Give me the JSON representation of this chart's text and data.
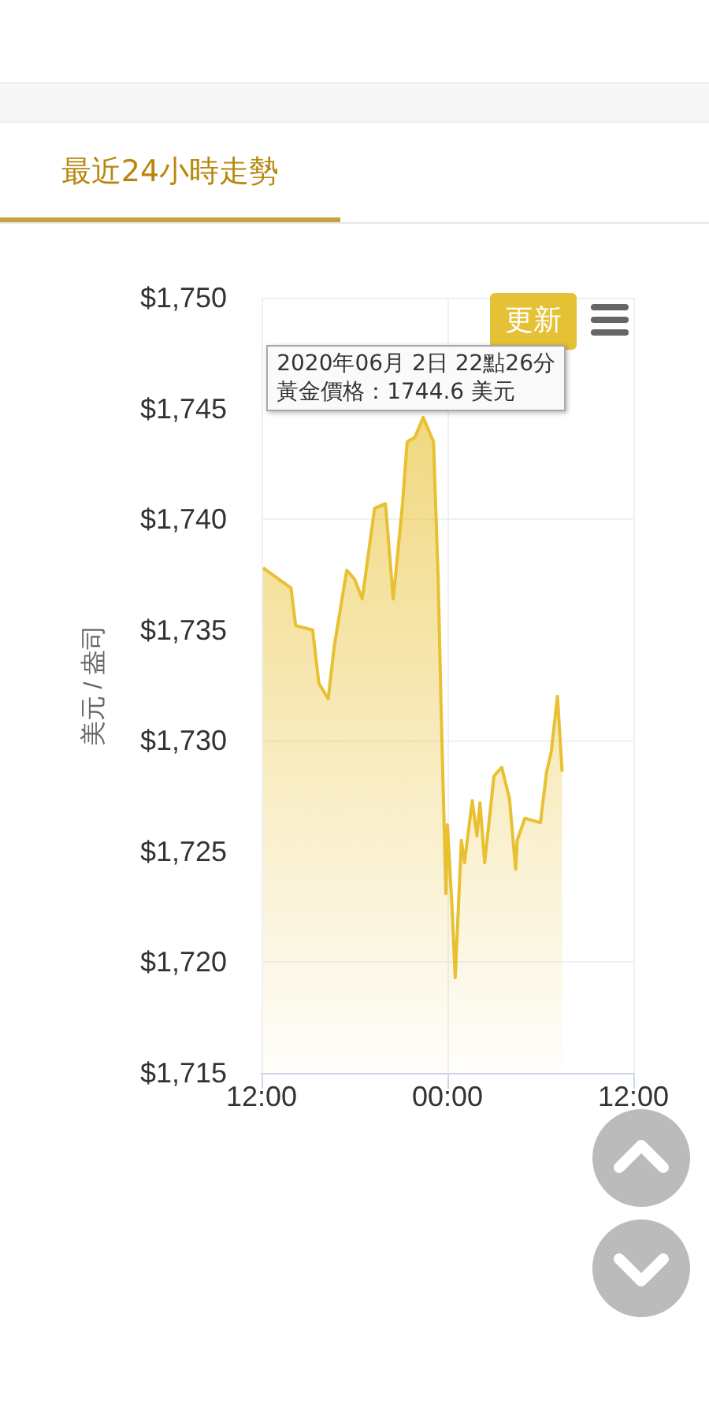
{
  "chart_data": {
    "type": "area",
    "title": "最近24小時走勢",
    "ylabel": "美元 / 盎司",
    "annotations": [
      {
        "text": "2020年06月 2日 22點26分",
        "x": "2020-06-02T22:26",
        "y": 1744.6
      },
      {
        "text": "黃金價格：1744.6 美元",
        "x": "2020-06-02T22:26",
        "y": 1744.6
      },
      "更新"
    ],
    "x": [
      "2020-06-02T12:06",
      "2020-06-02T13:54",
      "2020-06-02T14:12",
      "2020-06-02T15:18",
      "2020-06-02T15:42",
      "2020-06-02T16:18",
      "2020-06-02T16:42",
      "2020-06-02T17:30",
      "2020-06-02T18:00",
      "2020-06-02T18:30",
      "2020-06-02T19:18",
      "2020-06-02T20:00",
      "2020-06-02T20:30",
      "2020-06-02T21:06",
      "2020-06-02T21:24",
      "2020-06-02T21:54",
      "2020-06-02T22:26",
      "2020-06-02T23:06",
      "2020-06-02T23:24",
      "2020-06-02T23:36",
      "2020-06-02T23:54",
      "2020-06-03T00:00",
      "2020-06-03T00:18",
      "2020-06-03T00:30",
      "2020-06-03T00:54",
      "2020-06-03T01:06",
      "2020-06-03T01:36",
      "2020-06-03T01:54",
      "2020-06-03T02:06",
      "2020-06-03T02:24",
      "2020-06-03T03:00",
      "2020-06-03T03:30",
      "2020-06-03T04:00",
      "2020-06-03T04:24",
      "2020-06-03T04:30",
      "2020-06-03T05:00",
      "2020-06-03T06:00",
      "2020-06-03T06:24",
      "2020-06-03T06:42",
      "2020-06-03T07:06",
      "2020-06-03T07:24"
    ],
    "series": [
      {
        "color": "#e8c030",
        "values": [
          1737.8,
          1736.9,
          1735.2,
          1735.0,
          1732.6,
          1731.9,
          1734.3,
          1737.7,
          1737.3,
          1736.4,
          1740.5,
          1740.7,
          1736.4,
          1740.7,
          1743.5,
          1743.7,
          1744.6,
          1743.5,
          1737.3,
          1731.2,
          1723.1,
          1726.2,
          1722.4,
          1719.3,
          1725.5,
          1724.5,
          1727.3,
          1725.7,
          1727.2,
          1724.5,
          1728.4,
          1728.8,
          1727.4,
          1724.2,
          1725.5,
          1726.5,
          1726.3,
          1728.6,
          1729.5,
          1732.0,
          1728.6
        ]
      }
    ],
    "xlim": [
      "2020-06-02T12:00",
      "2020-06-03T12:00"
    ],
    "xticks": [
      {
        "value": "2020-06-02T12:00",
        "label": "12:00"
      },
      {
        "value": "2020-06-03T00:00",
        "label": "00:00"
      },
      {
        "value": "2020-06-03T12:00",
        "label": "12:00"
      }
    ],
    "ylim": [
      1715,
      1750
    ],
    "yticks": [
      {
        "value": 1715,
        "label": "$1,715"
      },
      {
        "value": 1720,
        "label": "$1,720"
      },
      {
        "value": 1725,
        "label": "$1,725"
      },
      {
        "value": 1730,
        "label": "$1,730"
      },
      {
        "value": 1735,
        "label": "$1,735"
      },
      {
        "value": 1740,
        "label": "$1,740"
      },
      {
        "value": 1745,
        "label": "$1,745"
      },
      {
        "value": 1750,
        "label": "$1,750"
      }
    ],
    "grid": true,
    "marker": "none",
    "line_style": "solid"
  }
}
